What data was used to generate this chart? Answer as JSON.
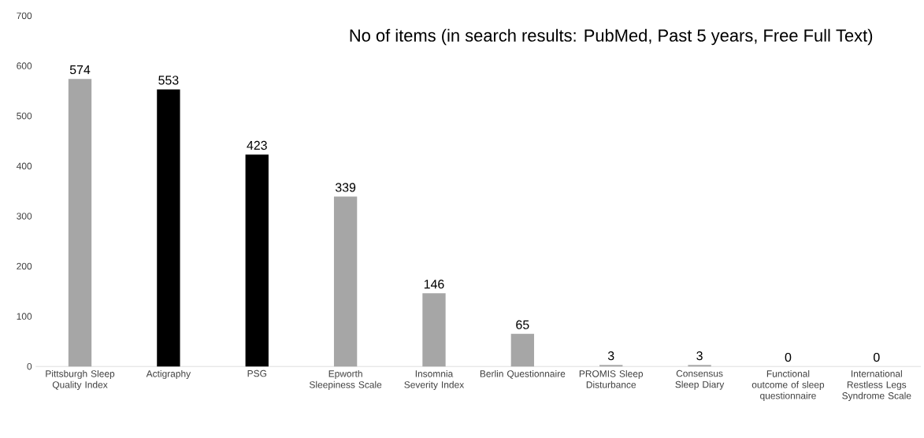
{
  "chart_data": {
    "type": "bar",
    "title": "No of items (in search results: PubMed, Past 5 years, Free Full Text)",
    "categories": [
      "Pittsburgh Sleep Quality Index",
      "Actigraphy",
      "PSG",
      "Epworth Sleepiness Scale",
      "Insomnia Severity Index",
      "Berlin Questionnaire",
      "PROMIS Sleep Disturbance",
      "Consensus Sleep Diary",
      "Functional outcome of sleep questionnaire",
      "International Restless Legs Syndrome Scale"
    ],
    "values": [
      574,
      553,
      423,
      339,
      146,
      65,
      3,
      3,
      0,
      0
    ],
    "colors": [
      "#a6a6a6",
      "#000000",
      "#000000",
      "#a6a6a6",
      "#a6a6a6",
      "#a6a6a6",
      "#a6a6a6",
      "#a6a6a6",
      "#a6a6a6",
      "#a6a6a6"
    ],
    "ylim": [
      0,
      700
    ],
    "yticks": [
      0,
      100,
      200,
      300,
      400,
      500,
      600,
      700
    ],
    "data_labels": true
  }
}
